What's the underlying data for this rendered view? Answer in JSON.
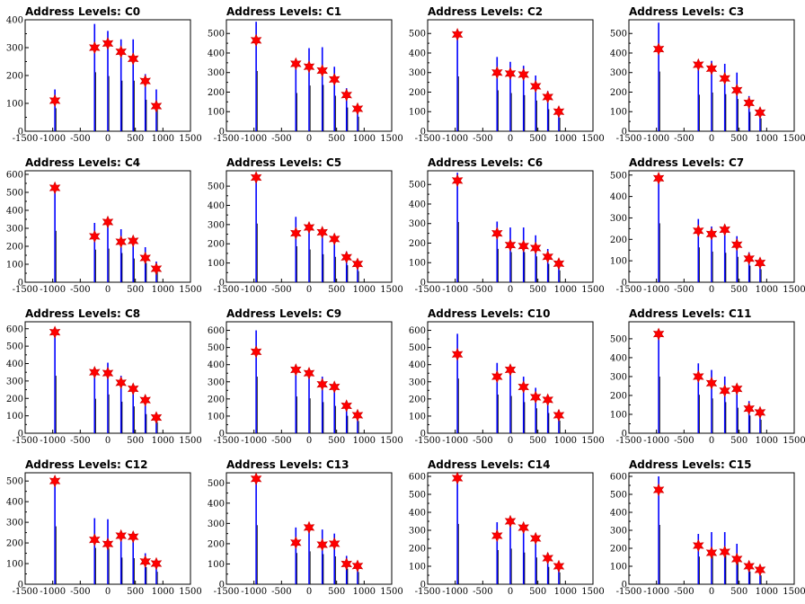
{
  "x_tick_labels": [
    "-1500",
    "-1000",
    "-500",
    "0",
    "500",
    "1000",
    "1500"
  ],
  "chart_data": [
    {
      "type": "bar",
      "title": "Address Levels: C0",
      "xlim": [
        -1500,
        1500
      ],
      "ylim": [
        0,
        400
      ],
      "yticks": [
        0,
        100,
        200,
        300,
        400
      ],
      "bars": [
        {
          "x": -960,
          "y": 150
        },
        {
          "x": -240,
          "y": 385
        },
        {
          "x": 0,
          "y": 360
        },
        {
          "x": 240,
          "y": 330
        },
        {
          "x": 460,
          "y": 330
        },
        {
          "x": 680,
          "y": 205
        },
        {
          "x": 880,
          "y": 150
        }
      ],
      "markers": [
        {
          "x": -960,
          "y": 110
        },
        {
          "x": -240,
          "y": 300
        },
        {
          "x": 0,
          "y": 315
        },
        {
          "x": 240,
          "y": 285
        },
        {
          "x": 460,
          "y": 260
        },
        {
          "x": 680,
          "y": 180
        },
        {
          "x": 880,
          "y": 90
        }
      ]
    },
    {
      "type": "bar",
      "title": "Address Levels: C1",
      "xlim": [
        -1500,
        1500
      ],
      "ylim": [
        0,
        570
      ],
      "yticks": [
        0,
        100,
        200,
        300,
        400,
        500
      ],
      "bars": [
        {
          "x": -960,
          "y": 560
        },
        {
          "x": -240,
          "y": 355
        },
        {
          "x": 0,
          "y": 425
        },
        {
          "x": 240,
          "y": 430
        },
        {
          "x": 460,
          "y": 330
        },
        {
          "x": 680,
          "y": 220
        },
        {
          "x": 880,
          "y": 135
        }
      ],
      "markers": [
        {
          "x": -960,
          "y": 465
        },
        {
          "x": -240,
          "y": 345
        },
        {
          "x": 0,
          "y": 330
        },
        {
          "x": 240,
          "y": 310
        },
        {
          "x": 460,
          "y": 265
        },
        {
          "x": 680,
          "y": 185
        },
        {
          "x": 880,
          "y": 115
        }
      ]
    },
    {
      "type": "bar",
      "title": "Address Levels: C2",
      "xlim": [
        -1500,
        1500
      ],
      "ylim": [
        0,
        570
      ],
      "yticks": [
        0,
        100,
        200,
        300,
        400,
        500
      ],
      "bars": [
        {
          "x": -960,
          "y": 510
        },
        {
          "x": -240,
          "y": 380
        },
        {
          "x": 0,
          "y": 355
        },
        {
          "x": 240,
          "y": 335
        },
        {
          "x": 460,
          "y": 285
        },
        {
          "x": 680,
          "y": 205
        },
        {
          "x": 880,
          "y": 125
        }
      ],
      "markers": [
        {
          "x": -960,
          "y": 495
        },
        {
          "x": -240,
          "y": 300
        },
        {
          "x": 0,
          "y": 295
        },
        {
          "x": 240,
          "y": 290
        },
        {
          "x": 460,
          "y": 230
        },
        {
          "x": 680,
          "y": 175
        },
        {
          "x": 880,
          "y": 100
        }
      ]
    },
    {
      "type": "bar",
      "title": "Address Levels: C3",
      "xlim": [
        -1500,
        1500
      ],
      "ylim": [
        0,
        570
      ],
      "yticks": [
        0,
        100,
        200,
        300,
        400,
        500
      ],
      "bars": [
        {
          "x": -960,
          "y": 555
        },
        {
          "x": -240,
          "y": 340
        },
        {
          "x": 0,
          "y": 360
        },
        {
          "x": 240,
          "y": 345
        },
        {
          "x": 460,
          "y": 300
        },
        {
          "x": 680,
          "y": 180
        },
        {
          "x": 880,
          "y": 120
        }
      ],
      "markers": [
        {
          "x": -960,
          "y": 420
        },
        {
          "x": -240,
          "y": 340
        },
        {
          "x": 0,
          "y": 320
        },
        {
          "x": 240,
          "y": 270
        },
        {
          "x": 460,
          "y": 210
        },
        {
          "x": 680,
          "y": 145
        },
        {
          "x": 880,
          "y": 95
        }
      ]
    },
    {
      "type": "bar",
      "title": "Address Levels: C4",
      "xlim": [
        -1500,
        1500
      ],
      "ylim": [
        0,
        620
      ],
      "yticks": [
        0,
        100,
        200,
        300,
        400,
        500,
        600
      ],
      "bars": [
        {
          "x": -960,
          "y": 520
        },
        {
          "x": -240,
          "y": 330
        },
        {
          "x": 0,
          "y": 340
        },
        {
          "x": 240,
          "y": 295
        },
        {
          "x": 460,
          "y": 240
        },
        {
          "x": 680,
          "y": 195
        },
        {
          "x": 880,
          "y": 115
        }
      ],
      "markers": [
        {
          "x": -960,
          "y": 525
        },
        {
          "x": -240,
          "y": 255
        },
        {
          "x": 0,
          "y": 335
        },
        {
          "x": 240,
          "y": 225
        },
        {
          "x": 460,
          "y": 230
        },
        {
          "x": 680,
          "y": 135
        },
        {
          "x": 880,
          "y": 75
        }
      ]
    },
    {
      "type": "bar",
      "title": "Address Levels: C5",
      "xlim": [
        -1500,
        1500
      ],
      "ylim": [
        0,
        580
      ],
      "yticks": [
        0,
        100,
        200,
        300,
        400,
        500
      ],
      "bars": [
        {
          "x": -960,
          "y": 555
        },
        {
          "x": -240,
          "y": 340
        },
        {
          "x": 0,
          "y": 310
        },
        {
          "x": 240,
          "y": 265
        },
        {
          "x": 460,
          "y": 240
        },
        {
          "x": 680,
          "y": 160
        },
        {
          "x": 880,
          "y": 105
        }
      ],
      "markers": [
        {
          "x": -960,
          "y": 545
        },
        {
          "x": -240,
          "y": 255
        },
        {
          "x": 0,
          "y": 285
        },
        {
          "x": 240,
          "y": 260
        },
        {
          "x": 460,
          "y": 225
        },
        {
          "x": 680,
          "y": 130
        },
        {
          "x": 880,
          "y": 95
        }
      ]
    },
    {
      "type": "bar",
      "title": "Address Levels: C6",
      "xlim": [
        -1500,
        1500
      ],
      "ylim": [
        0,
        570
      ],
      "yticks": [
        0,
        100,
        200,
        300,
        400,
        500
      ],
      "bars": [
        {
          "x": -960,
          "y": 560
        },
        {
          "x": -240,
          "y": 310
        },
        {
          "x": 0,
          "y": 280
        },
        {
          "x": 240,
          "y": 280
        },
        {
          "x": 460,
          "y": 240
        },
        {
          "x": 680,
          "y": 170
        },
        {
          "x": 880,
          "y": 110
        }
      ],
      "markers": [
        {
          "x": -960,
          "y": 520
        },
        {
          "x": -240,
          "y": 250
        },
        {
          "x": 0,
          "y": 190
        },
        {
          "x": 240,
          "y": 185
        },
        {
          "x": 460,
          "y": 175
        },
        {
          "x": 680,
          "y": 130
        },
        {
          "x": 880,
          "y": 95
        }
      ]
    },
    {
      "type": "bar",
      "title": "Address Levels: C7",
      "xlim": [
        -1500,
        1500
      ],
      "ylim": [
        0,
        520
      ],
      "yticks": [
        0,
        100,
        200,
        300,
        400,
        500
      ],
      "bars": [
        {
          "x": -960,
          "y": 500
        },
        {
          "x": -240,
          "y": 295
        },
        {
          "x": 0,
          "y": 260
        },
        {
          "x": 240,
          "y": 250
        },
        {
          "x": 460,
          "y": 215
        },
        {
          "x": 680,
          "y": 140
        },
        {
          "x": 880,
          "y": 110
        }
      ],
      "markers": [
        {
          "x": -960,
          "y": 485
        },
        {
          "x": -240,
          "y": 240
        },
        {
          "x": 0,
          "y": 225
        },
        {
          "x": 240,
          "y": 245
        },
        {
          "x": 460,
          "y": 175
        },
        {
          "x": 680,
          "y": 110
        },
        {
          "x": 880,
          "y": 90
        }
      ]
    },
    {
      "type": "bar",
      "title": "Address Levels: C8",
      "xlim": [
        -1500,
        1500
      ],
      "ylim": [
        0,
        640
      ],
      "yticks": [
        0,
        100,
        200,
        300,
        400,
        500,
        600
      ],
      "bars": [
        {
          "x": -960,
          "y": 600
        },
        {
          "x": -240,
          "y": 360
        },
        {
          "x": 0,
          "y": 405
        },
        {
          "x": 240,
          "y": 330
        },
        {
          "x": 460,
          "y": 280
        },
        {
          "x": 680,
          "y": 200
        },
        {
          "x": 880,
          "y": 115
        }
      ],
      "markers": [
        {
          "x": -960,
          "y": 580
        },
        {
          "x": -240,
          "y": 350
        },
        {
          "x": 0,
          "y": 345
        },
        {
          "x": 240,
          "y": 290
        },
        {
          "x": 460,
          "y": 255
        },
        {
          "x": 680,
          "y": 190
        },
        {
          "x": 880,
          "y": 90
        }
      ]
    },
    {
      "type": "bar",
      "title": "Address Levels: C9",
      "xlim": [
        -1500,
        1500
      ],
      "ylim": [
        0,
        650
      ],
      "yticks": [
        0,
        100,
        200,
        300,
        400,
        500,
        600
      ],
      "bars": [
        {
          "x": -960,
          "y": 600
        },
        {
          "x": -240,
          "y": 390
        },
        {
          "x": 0,
          "y": 370
        },
        {
          "x": 240,
          "y": 330
        },
        {
          "x": 460,
          "y": 290
        },
        {
          "x": 680,
          "y": 185
        },
        {
          "x": 880,
          "y": 130
        }
      ],
      "markers": [
        {
          "x": -960,
          "y": 475
        },
        {
          "x": -240,
          "y": 370
        },
        {
          "x": 0,
          "y": 350
        },
        {
          "x": 240,
          "y": 285
        },
        {
          "x": 460,
          "y": 270
        },
        {
          "x": 680,
          "y": 160
        },
        {
          "x": 880,
          "y": 105
        }
      ]
    },
    {
      "type": "bar",
      "title": "Address Levels: C10",
      "xlim": [
        -1500,
        1500
      ],
      "ylim": [
        0,
        650
      ],
      "yticks": [
        0,
        100,
        200,
        300,
        400,
        500,
        600
      ],
      "bars": [
        {
          "x": -960,
          "y": 580
        },
        {
          "x": -240,
          "y": 410
        },
        {
          "x": 0,
          "y": 395
        },
        {
          "x": 240,
          "y": 330
        },
        {
          "x": 460,
          "y": 265
        },
        {
          "x": 680,
          "y": 215
        },
        {
          "x": 880,
          "y": 135
        }
      ],
      "markers": [
        {
          "x": -960,
          "y": 460
        },
        {
          "x": -240,
          "y": 330
        },
        {
          "x": 0,
          "y": 370
        },
        {
          "x": 240,
          "y": 270
        },
        {
          "x": 460,
          "y": 210
        },
        {
          "x": 680,
          "y": 195
        },
        {
          "x": 880,
          "y": 105
        }
      ]
    },
    {
      "type": "bar",
      "title": "Address Levels: C11",
      "xlim": [
        -1500,
        1500
      ],
      "ylim": [
        0,
        590
      ],
      "yticks": [
        0,
        100,
        200,
        300,
        400,
        500
      ],
      "bars": [
        {
          "x": -960,
          "y": 545
        },
        {
          "x": -240,
          "y": 370
        },
        {
          "x": 0,
          "y": 335
        },
        {
          "x": 240,
          "y": 300
        },
        {
          "x": 460,
          "y": 245
        },
        {
          "x": 680,
          "y": 170
        },
        {
          "x": 880,
          "y": 130
        }
      ],
      "markers": [
        {
          "x": -960,
          "y": 525
        },
        {
          "x": -240,
          "y": 300
        },
        {
          "x": 0,
          "y": 265
        },
        {
          "x": 240,
          "y": 225
        },
        {
          "x": 460,
          "y": 235
        },
        {
          "x": 680,
          "y": 130
        },
        {
          "x": 880,
          "y": 110
        }
      ]
    },
    {
      "type": "bar",
      "title": "Address Levels: C12",
      "xlim": [
        -1500,
        1500
      ],
      "ylim": [
        0,
        540
      ],
      "yticks": [
        0,
        100,
        200,
        300,
        400,
        500
      ],
      "bars": [
        {
          "x": -960,
          "y": 510
        },
        {
          "x": -240,
          "y": 320
        },
        {
          "x": 0,
          "y": 315
        },
        {
          "x": 240,
          "y": 235
        },
        {
          "x": 460,
          "y": 230
        },
        {
          "x": 680,
          "y": 150
        },
        {
          "x": 880,
          "y": 110
        }
      ],
      "markers": [
        {
          "x": -960,
          "y": 500
        },
        {
          "x": -240,
          "y": 215
        },
        {
          "x": 0,
          "y": 195
        },
        {
          "x": 240,
          "y": 235
        },
        {
          "x": 460,
          "y": 230
        },
        {
          "x": 680,
          "y": 110
        },
        {
          "x": 880,
          "y": 100
        }
      ]
    },
    {
      "type": "bar",
      "title": "Address Levels: C13",
      "xlim": [
        -1500,
        1500
      ],
      "ylim": [
        0,
        550
      ],
      "yticks": [
        0,
        100,
        200,
        300,
        400,
        500
      ],
      "bars": [
        {
          "x": -960,
          "y": 530
        },
        {
          "x": -240,
          "y": 280
        },
        {
          "x": 0,
          "y": 295
        },
        {
          "x": 240,
          "y": 270
        },
        {
          "x": 460,
          "y": 250
        },
        {
          "x": 680,
          "y": 140
        },
        {
          "x": 880,
          "y": 110
        }
      ],
      "markers": [
        {
          "x": -960,
          "y": 520
        },
        {
          "x": -240,
          "y": 205
        },
        {
          "x": 0,
          "y": 280
        },
        {
          "x": 240,
          "y": 195
        },
        {
          "x": 460,
          "y": 200
        },
        {
          "x": 680,
          "y": 100
        },
        {
          "x": 880,
          "y": 90
        }
      ]
    },
    {
      "type": "bar",
      "title": "Address Levels: C14",
      "xlim": [
        -1500,
        1500
      ],
      "ylim": [
        0,
        620
      ],
      "yticks": [
        0,
        100,
        200,
        300,
        400,
        500,
        600
      ],
      "bars": [
        {
          "x": -960,
          "y": 610
        },
        {
          "x": -240,
          "y": 345
        },
        {
          "x": 0,
          "y": 360
        },
        {
          "x": 240,
          "y": 320
        },
        {
          "x": 460,
          "y": 270
        },
        {
          "x": 680,
          "y": 175
        },
        {
          "x": 880,
          "y": 120
        }
      ],
      "markers": [
        {
          "x": -960,
          "y": 590
        },
        {
          "x": -240,
          "y": 270
        },
        {
          "x": 0,
          "y": 350
        },
        {
          "x": 240,
          "y": 315
        },
        {
          "x": 460,
          "y": 255
        },
        {
          "x": 680,
          "y": 145
        },
        {
          "x": 880,
          "y": 100
        }
      ]
    },
    {
      "type": "bar",
      "title": "Address Levels: C15",
      "xlim": [
        -1500,
        1500
      ],
      "ylim": [
        0,
        620
      ],
      "yticks": [
        0,
        100,
        200,
        300,
        400,
        500,
        600
      ],
      "bars": [
        {
          "x": -960,
          "y": 600
        },
        {
          "x": -240,
          "y": 280
        },
        {
          "x": 0,
          "y": 290
        },
        {
          "x": 240,
          "y": 290
        },
        {
          "x": 460,
          "y": 225
        },
        {
          "x": 680,
          "y": 130
        },
        {
          "x": 880,
          "y": 90
        }
      ],
      "markers": [
        {
          "x": -960,
          "y": 525
        },
        {
          "x": -240,
          "y": 215
        },
        {
          "x": 0,
          "y": 175
        },
        {
          "x": 240,
          "y": 180
        },
        {
          "x": 460,
          "y": 140
        },
        {
          "x": 680,
          "y": 100
        },
        {
          "x": 880,
          "y": 80
        }
      ]
    }
  ]
}
